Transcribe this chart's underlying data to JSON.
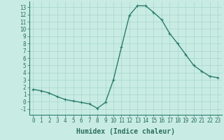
{
  "x": [
    0,
    1,
    2,
    3,
    4,
    5,
    6,
    7,
    8,
    9,
    10,
    11,
    12,
    13,
    14,
    15,
    16,
    17,
    18,
    19,
    20,
    21,
    22,
    23
  ],
  "y": [
    1.7,
    1.5,
    1.2,
    0.7,
    0.3,
    0.1,
    -0.1,
    -0.3,
    -0.9,
    -0.1,
    3.0,
    7.5,
    11.9,
    13.2,
    13.2,
    12.3,
    11.3,
    9.4,
    8.0,
    6.5,
    5.0,
    4.2,
    3.5,
    3.3
  ],
  "line_color": "#2d7c6e",
  "marker": "+",
  "markersize": 3,
  "bg_color": "#c8ece4",
  "grid_color": "#a8d4cc",
  "xlabel": "Humidex (Indice chaleur)",
  "xlim": [
    -0.5,
    23.5
  ],
  "ylim": [
    -1.8,
    13.8
  ],
  "xticks": [
    0,
    1,
    2,
    3,
    4,
    5,
    6,
    7,
    8,
    9,
    10,
    11,
    12,
    13,
    14,
    15,
    16,
    17,
    18,
    19,
    20,
    21,
    22,
    23
  ],
  "yticks": [
    -1,
    0,
    1,
    2,
    3,
    4,
    5,
    6,
    7,
    8,
    9,
    10,
    11,
    12,
    13
  ],
  "tick_fontsize": 5.5,
  "xlabel_fontsize": 7,
  "linewidth": 1.0,
  "markeredgewidth": 0.8
}
